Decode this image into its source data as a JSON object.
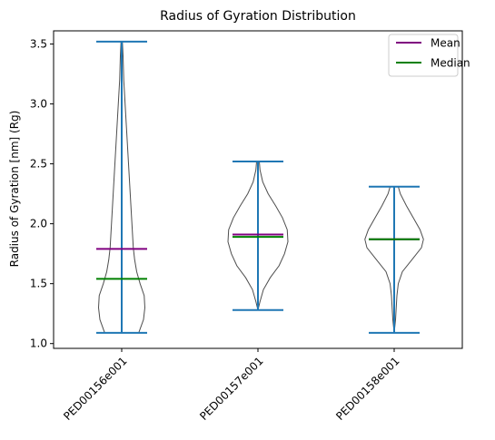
{
  "chart_data": {
    "type": "violin",
    "title": "Radius of Gyration Distribution",
    "ylabel": "Radius of Gyration [nm] (Rg)",
    "xlabel": "",
    "ylim": [
      0.96,
      3.61
    ],
    "yticks": [
      "1.0",
      "1.5",
      "2.0",
      "2.5",
      "3.0",
      "3.5"
    ],
    "categories": [
      "PED00156e001",
      "PED00157e001",
      "PED00158e001"
    ],
    "legend": {
      "placement": "top-right",
      "entries": [
        {
          "label": "Mean",
          "color": "#800080"
        },
        {
          "label": "Median",
          "color": "#008000"
        }
      ]
    },
    "colors": {
      "outline": "#4d4d4d",
      "whisker": "#1f77b4",
      "mean": "#800080",
      "median": "#008000"
    },
    "series": [
      {
        "category": "PED00156e001",
        "min": 1.09,
        "max": 3.52,
        "mean": 1.79,
        "median": 1.54,
        "density": [
          [
            1.09,
            0.25
          ],
          [
            1.2,
            0.32
          ],
          [
            1.3,
            0.34
          ],
          [
            1.4,
            0.33
          ],
          [
            1.5,
            0.27
          ],
          [
            1.6,
            0.22
          ],
          [
            1.7,
            0.19
          ],
          [
            1.8,
            0.17
          ],
          [
            1.9,
            0.16
          ],
          [
            2.0,
            0.15
          ],
          [
            2.1,
            0.14
          ],
          [
            2.2,
            0.13
          ],
          [
            2.4,
            0.11
          ],
          [
            2.6,
            0.09
          ],
          [
            2.8,
            0.07
          ],
          [
            3.0,
            0.05
          ],
          [
            3.2,
            0.03
          ],
          [
            3.4,
            0.02
          ],
          [
            3.52,
            0.01
          ]
        ]
      },
      {
        "category": "PED00157e001",
        "min": 1.28,
        "max": 2.52,
        "mean": 1.91,
        "median": 1.89,
        "density": [
          [
            1.28,
            0.0
          ],
          [
            1.35,
            0.03
          ],
          [
            1.45,
            0.08
          ],
          [
            1.55,
            0.18
          ],
          [
            1.65,
            0.31
          ],
          [
            1.75,
            0.39
          ],
          [
            1.85,
            0.44
          ],
          [
            1.95,
            0.43
          ],
          [
            2.05,
            0.36
          ],
          [
            2.15,
            0.26
          ],
          [
            2.25,
            0.15
          ],
          [
            2.35,
            0.07
          ],
          [
            2.45,
            0.03
          ],
          [
            2.52,
            0.02
          ]
        ]
      },
      {
        "category": "PED00158e001",
        "min": 1.09,
        "max": 2.31,
        "mean": 1.87,
        "median": 1.87,
        "density": [
          [
            1.09,
            0.0
          ],
          [
            1.2,
            0.02
          ],
          [
            1.3,
            0.03
          ],
          [
            1.4,
            0.04
          ],
          [
            1.5,
            0.06
          ],
          [
            1.6,
            0.12
          ],
          [
            1.7,
            0.26
          ],
          [
            1.8,
            0.4
          ],
          [
            1.87,
            0.43
          ],
          [
            1.95,
            0.38
          ],
          [
            2.05,
            0.28
          ],
          [
            2.15,
            0.18
          ],
          [
            2.25,
            0.09
          ],
          [
            2.31,
            0.06
          ]
        ]
      }
    ]
  }
}
